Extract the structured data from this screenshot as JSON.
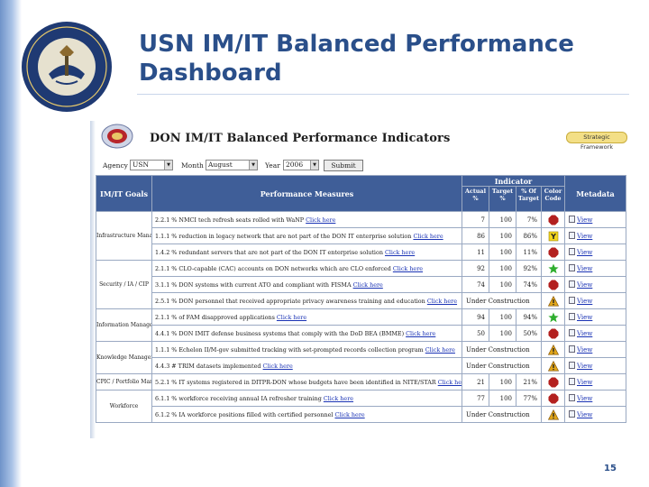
{
  "slide": {
    "title_line1": "USN IM/IT Balanced Performance",
    "title_line2": "Dashboard",
    "page_number": "15",
    "accent_color": "#2a4f8a",
    "seal_icon": "department-of-the-navy-seal"
  },
  "web": {
    "title": "DON IM/IT Balanced Performance Indicators",
    "framework_button": "Strategic Framework",
    "filters": {
      "agency_label": "Agency",
      "agency_value": "USN",
      "month_label": "Month",
      "month_value": "August",
      "year_label": "Year",
      "year_value": "2006",
      "submit_label": "Submit"
    },
    "headers": {
      "goals": "IM/IT Goals",
      "measures": "Performance Measures",
      "indicator": "Indicator",
      "actual": "Actual %",
      "target": "Target %",
      "pct_of_target": "% Of Target",
      "color_code": "Color Code",
      "metadata": "Metadata"
    },
    "goals": [
      "Infrastructure Management",
      "Security / IA / CIP",
      "Information Management Transformation",
      "Knowledge Management",
      "CPIC / Portfolio Management",
      "Workforce"
    ],
    "rows": [
      {
        "measure": "2.2.1 % NMCI tech refresh seats rolled with WaNP",
        "link": "Click here",
        "actual": "7",
        "target": "100",
        "pct": "7%",
        "code": "red",
        "meta": "View"
      },
      {
        "measure": "1.1.1 % reduction in legacy network that are not part of the DON IT enterprise solution",
        "link": "Click here",
        "actual": "86",
        "target": "100",
        "pct": "86%",
        "code": "yellow",
        "meta": "View"
      },
      {
        "measure": "1.4.2 % redundant servers that are not part of the DON IT enterprise solution",
        "link": "Click here",
        "actual": "11",
        "target": "100",
        "pct": "11%",
        "code": "red",
        "meta": "View"
      },
      {
        "measure": "2.1.1 % CLO-capable (CAC) accounts on DON networks which are CLO enforced",
        "link": "Click here",
        "actual": "92",
        "target": "100",
        "pct": "92%",
        "code": "green",
        "meta": "View"
      },
      {
        "measure": "3.1.1 % DON systems with current ATO and compliant with FISMA",
        "link": "Click here",
        "actual": "74",
        "target": "100",
        "pct": "74%",
        "code": "red",
        "meta": "View"
      },
      {
        "measure": "2.5.1 % DON personnel that received appropriate privacy awareness training and education",
        "link": "Click here",
        "status": "Under Construction",
        "code": "construction",
        "meta": "View"
      },
      {
        "measure": "2.1.1 % of FAM disapproved applications",
        "link": "Click here",
        "actual": "94",
        "target": "100",
        "pct": "94%",
        "code": "green",
        "meta": "View"
      },
      {
        "measure": "4.4.1 % DON IMIT defense business systems that comply with the DoD BEA (BMME)",
        "link": "Click here",
        "actual": "50",
        "target": "100",
        "pct": "50%",
        "code": "red",
        "meta": "View"
      },
      {
        "measure": "1.1.1 % Echelon II/M-gov submitted tracking with set-prompted records collection program",
        "link": "Click here",
        "status": "Under Construction",
        "code": "construction",
        "meta": "View"
      },
      {
        "measure": "4.4.3 # TRIM datasets implemented",
        "link": "Click here",
        "status": "Under Construction",
        "code": "construction",
        "meta": "View"
      },
      {
        "measure": "5.2.1 % IT systems registered in DITPR-DON whose budgets have been identified in NITE/STAR",
        "link": "Click here",
        "actual": "21",
        "target": "100",
        "pct": "21%",
        "code": "red",
        "meta": "View"
      },
      {
        "measure": "6.1.1 % workforce receiving annual IA refresher training",
        "link": "Click here",
        "actual": "77",
        "target": "100",
        "pct": "77%",
        "code": "red",
        "meta": "View"
      },
      {
        "measure": "6.1.2 % IA workforce positions filled with certified personnel",
        "link": "Click here",
        "status": "Under Construction",
        "code": "construction",
        "meta": "View"
      }
    ],
    "colors": {
      "header_bg": "#3f5e98",
      "red": "#b3201f",
      "yellow": "#f2d51c",
      "green": "#2fae2f",
      "construction": "#e0a51a"
    }
  }
}
